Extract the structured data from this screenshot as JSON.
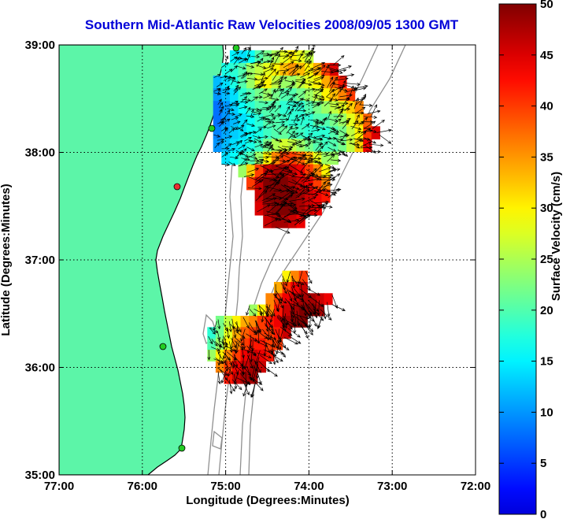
{
  "chart_data": {
    "type": "heatmap",
    "title": "Southern Mid-Atlantic Raw Velocities 2008/09/05 1300 GMT",
    "xlabel": "Longitude (Degrees:Minutes)",
    "ylabel": "Latitude (Degrees:Minutes)",
    "x_ticks": [
      "77:00",
      "76:00",
      "75:00",
      "74:00",
      "73:00",
      "72:00"
    ],
    "y_ticks": [
      "39:00",
      "38:00",
      "37:00",
      "36:00",
      "35:00"
    ],
    "xlim": [
      -77,
      -72
    ],
    "ylim": [
      35,
      39
    ],
    "grid": true,
    "colorbar": {
      "label": "Surface Velocity (cm/s)",
      "range": [
        0,
        50
      ],
      "ticks": [
        "0",
        "5",
        "10",
        "15",
        "20",
        "25",
        "30",
        "35",
        "40",
        "45",
        "50"
      ]
    },
    "colors": {
      "land": "#5cf5a8",
      "coast": "#000000",
      "bathymetry": "#909090",
      "grid": "#000000",
      "title": "#0000d8"
    },
    "fields": [
      {
        "name": "northern-field",
        "lon_range": [
          -75.15,
          -73.15
        ],
        "lat_range": [
          37.3,
          38.95
        ],
        "cells_speed": [
          [
            null,
            null,
            15,
            14,
            16,
            20,
            22,
            25,
            28,
            30,
            28,
            26,
            null,
            null,
            null,
            null,
            null,
            null,
            null,
            null
          ],
          [
            null,
            17,
            18,
            20,
            24,
            26,
            28,
            30,
            33,
            35,
            33,
            30,
            34,
            40,
            45,
            null,
            null,
            null,
            null,
            null
          ],
          [
            12,
            14,
            17,
            20,
            24,
            28,
            30,
            26,
            24,
            24,
            26,
            28,
            30,
            34,
            38,
            42,
            null,
            null,
            null,
            null
          ],
          [
            10,
            12,
            14,
            18,
            20,
            22,
            24,
            22,
            20,
            20,
            22,
            24,
            26,
            30,
            33,
            36,
            40,
            null,
            null,
            null
          ],
          [
            8,
            10,
            13,
            16,
            18,
            20,
            20,
            20,
            18,
            18,
            18,
            20,
            22,
            24,
            26,
            28,
            32,
            36,
            null,
            null
          ],
          [
            8,
            10,
            12,
            14,
            16,
            18,
            20,
            20,
            19,
            18,
            18,
            18,
            20,
            20,
            22,
            24,
            28,
            32,
            38,
            null
          ],
          [
            9,
            11,
            13,
            14,
            16,
            17,
            19,
            20,
            21,
            20,
            19,
            18,
            18,
            18,
            20,
            22,
            26,
            30,
            40,
            45
          ],
          [
            10,
            12,
            14,
            15,
            17,
            19,
            22,
            25,
            27,
            26,
            24,
            22,
            20,
            19,
            20,
            22,
            26,
            32,
            44,
            null
          ],
          [
            null,
            14,
            16,
            18,
            20,
            24,
            30,
            36,
            40,
            40,
            38,
            34,
            28,
            24,
            24,
            null,
            null,
            null,
            null,
            null
          ],
          [
            null,
            null,
            null,
            24,
            32,
            40,
            46,
            48,
            48,
            46,
            44,
            40,
            36,
            30,
            null,
            null,
            null,
            null,
            null,
            null
          ],
          [
            null,
            null,
            null,
            null,
            40,
            46,
            50,
            50,
            50,
            48,
            46,
            44,
            40,
            36,
            null,
            null,
            null,
            null,
            null,
            null
          ],
          [
            null,
            null,
            null,
            null,
            null,
            46,
            50,
            50,
            50,
            50,
            48,
            46,
            44,
            42,
            null,
            null,
            null,
            null,
            null,
            null
          ],
          [
            null,
            null,
            null,
            null,
            null,
            45,
            48,
            50,
            50,
            50,
            48,
            46,
            44,
            null,
            null,
            null,
            null,
            null,
            null,
            null
          ],
          [
            null,
            null,
            null,
            null,
            null,
            null,
            46,
            48,
            48,
            46,
            44,
            null,
            null,
            null,
            null,
            null,
            null,
            null,
            null,
            null
          ]
        ]
      },
      {
        "name": "southern-field",
        "lon_range": [
          -75.22,
          -73.62
        ],
        "lat_range": [
          35.85,
          36.9
        ],
        "cells_speed": [
          [
            null,
            null,
            null,
            null,
            null,
            null,
            null,
            null,
            null,
            30,
            36,
            40,
            null,
            null,
            null,
            null
          ],
          [
            null,
            null,
            null,
            null,
            null,
            null,
            null,
            null,
            34,
            40,
            44,
            46,
            null,
            null,
            null,
            null
          ],
          [
            null,
            null,
            null,
            null,
            null,
            null,
            null,
            36,
            40,
            44,
            46,
            48,
            48,
            46,
            44,
            null
          ],
          [
            null,
            null,
            null,
            null,
            null,
            24,
            30,
            36,
            42,
            46,
            48,
            50,
            50,
            48,
            null,
            null
          ],
          [
            null,
            22,
            26,
            30,
            34,
            36,
            40,
            42,
            44,
            48,
            50,
            50,
            null,
            null,
            null,
            null
          ],
          [
            18,
            22,
            28,
            34,
            38,
            40,
            40,
            40,
            42,
            46,
            null,
            null,
            null,
            null,
            null,
            null
          ],
          [
            20,
            24,
            30,
            36,
            40,
            42,
            42,
            40,
            40,
            null,
            null,
            null,
            null,
            null,
            null,
            null
          ],
          [
            24,
            30,
            36,
            40,
            44,
            46,
            44,
            42,
            null,
            null,
            null,
            null,
            null,
            null,
            null,
            null
          ],
          [
            null,
            36,
            40,
            44,
            46,
            48,
            46,
            null,
            null,
            null,
            null,
            null,
            null,
            null,
            null,
            null
          ],
          [
            null,
            null,
            42,
            46,
            48,
            48,
            null,
            null,
            null,
            null,
            null,
            null,
            null,
            null,
            null,
            null
          ]
        ]
      }
    ]
  }
}
